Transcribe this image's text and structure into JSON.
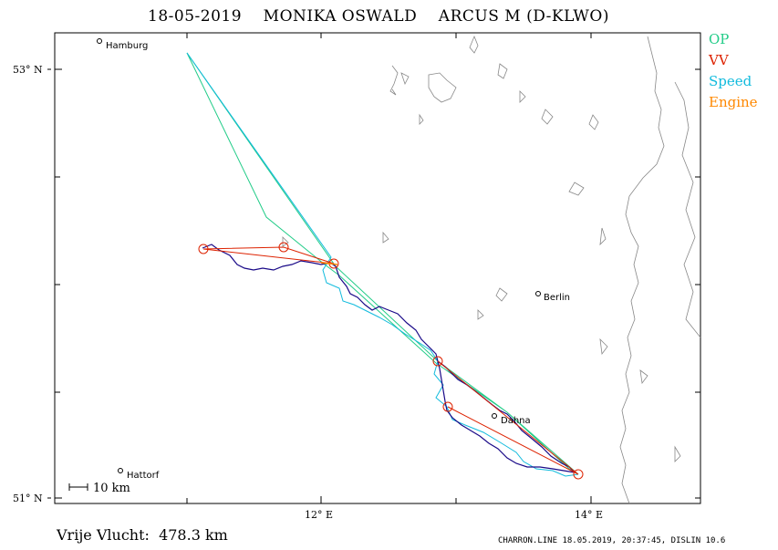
{
  "title": "18-05-2019    MONIKA OSWALD    ARCUS M (D-KLWO)",
  "legend": [
    {
      "label": "OP",
      "color": "#22cc88"
    },
    {
      "label": "VV",
      "color": "#dd2200"
    },
    {
      "label": "Speed",
      "color": "#11bbdd"
    },
    {
      "label": "Engine",
      "color": "#ff8800"
    }
  ],
  "axes": {
    "lat_top_label": "53° N",
    "lat_bottom_label": "51° N",
    "lon_left_label": "12° E",
    "lon_right_label": "14° E"
  },
  "scale_label": "10 km",
  "cities": {
    "hamburg": "Hamburg",
    "berlin": "Berlin",
    "dahna": "Dahna",
    "hattorf": "Hattorf"
  },
  "distance_text": "Vrije Vlucht:  478.3 km",
  "footer_text": "CHARRON.LINE 18.05.2019, 20:37:45, DISLIN 10.6"
}
